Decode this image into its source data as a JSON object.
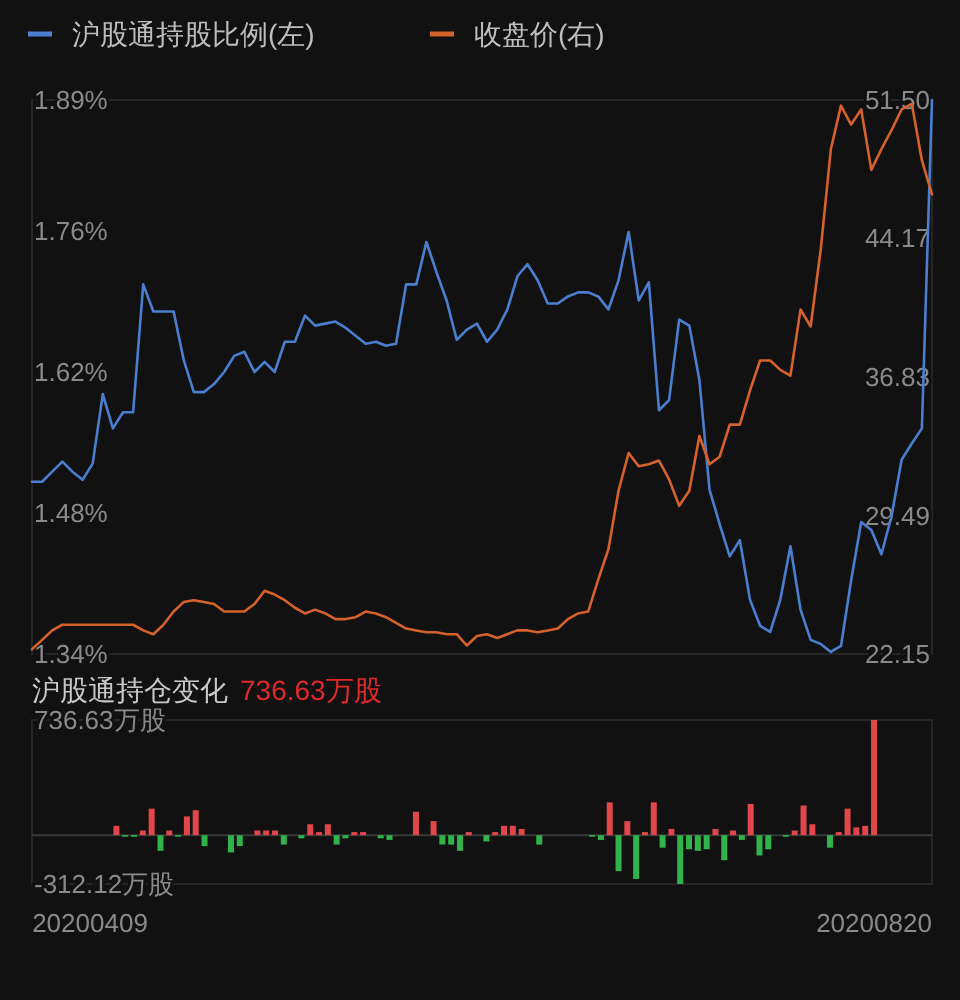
{
  "chart_data": [
    {
      "type": "line",
      "legend": "top left",
      "categories": [
        null,
        null,
        null,
        null,
        null,
        null,
        null,
        null,
        null,
        null,
        null,
        null,
        null,
        null,
        null,
        null,
        null,
        null,
        null,
        null,
        null,
        null,
        null,
        null,
        null,
        null,
        null,
        null,
        null,
        null,
        null,
        null,
        null,
        null,
        null,
        null,
        null,
        null,
        null,
        null,
        null,
        null,
        null,
        null,
        null,
        null,
        null,
        null,
        null,
        null,
        null,
        null,
        null,
        null,
        null,
        null,
        null,
        null,
        null,
        null,
        null,
        null,
        null,
        null,
        null,
        null,
        null,
        null,
        null,
        null,
        null,
        null,
        null,
        null,
        null,
        null,
        null,
        null,
        null,
        null,
        null,
        null,
        null,
        null,
        null,
        null,
        null,
        null,
        null,
        null
      ],
      "series": [
        {
          "name": "沪股通持股比例(左)",
          "color": "#4a7fd0",
          "type": "line",
          "axis": "y",
          "values": [
            1.511,
            1.511,
            1.521,
            1.531,
            1.521,
            1.513,
            1.529,
            1.598,
            1.564,
            1.58,
            1.58,
            1.707,
            1.68,
            1.68,
            1.68,
            1.632,
            1.6,
            1.6,
            1.608,
            1.62,
            1.636,
            1.64,
            1.62,
            1.63,
            1.62,
            1.65,
            1.65,
            1.676,
            1.666,
            1.668,
            1.67,
            1.664,
            1.656,
            1.648,
            1.65,
            1.646,
            1.648,
            1.707,
            1.707,
            1.749,
            1.719,
            1.691,
            1.652,
            1.662,
            1.668,
            1.65,
            1.662,
            1.682,
            1.715,
            1.727,
            1.711,
            1.688,
            1.688,
            1.695,
            1.699,
            1.699,
            1.695,
            1.682,
            1.711,
            1.759,
            1.691,
            1.709,
            1.582,
            1.592,
            1.672,
            1.666,
            1.612,
            1.503,
            1.469,
            1.437,
            1.453,
            1.394,
            1.368,
            1.362,
            1.394,
            1.447,
            1.384,
            1.354,
            1.35,
            1.342,
            1.348,
            1.413,
            1.471,
            1.463,
            1.439,
            1.477,
            1.533,
            1.549,
            1.564,
            1.89
          ]
        },
        {
          "name": "收盘价(右)",
          "color": "#d4622a",
          "type": "line",
          "axis": "y2",
          "values": [
            22.4,
            22.9,
            23.4,
            23.7,
            23.7,
            23.7,
            23.7,
            23.7,
            23.7,
            23.7,
            23.7,
            23.4,
            23.2,
            23.7,
            24.4,
            24.9,
            25.0,
            24.9,
            24.8,
            24.4,
            24.4,
            24.4,
            24.8,
            25.5,
            25.3,
            25.0,
            24.6,
            24.3,
            24.5,
            24.3,
            24.0,
            24.0,
            24.1,
            24.4,
            24.3,
            24.1,
            23.8,
            23.5,
            23.4,
            23.3,
            23.3,
            23.2,
            23.2,
            22.6,
            23.1,
            23.2,
            23.0,
            23.2,
            23.4,
            23.4,
            23.3,
            23.4,
            23.5,
            24.0,
            24.3,
            24.4,
            26.1,
            27.7,
            30.8,
            32.8,
            32.1,
            32.2,
            32.4,
            31.4,
            30.0,
            30.8,
            33.7,
            32.2,
            32.6,
            34.3,
            34.3,
            36.1,
            37.7,
            37.7,
            37.2,
            36.9,
            40.4,
            39.5,
            43.6,
            48.9,
            51.2,
            50.2,
            51.0,
            47.8,
            48.9,
            49.9,
            51.0,
            51.3,
            48.3,
            46.5
          ]
        }
      ],
      "ylim": [
        1.34,
        1.89
      ],
      "yticks": [
        {
          "value": 1.34,
          "label": "1.34%"
        },
        {
          "value": 1.48,
          "label": "1.48%"
        },
        {
          "value": 1.62,
          "label": "1.62%"
        },
        {
          "value": 1.76,
          "label": "1.76%"
        },
        {
          "value": 1.89,
          "label": "1.89%"
        }
      ],
      "y2lim": [
        22.15,
        51.5
      ],
      "y2ticks": [
        22.15,
        29.49,
        36.83,
        44.17,
        {
          "value": 51.5,
          "label": "51.50"
        }
      ]
    },
    {
      "type": "bar",
      "title": "沪股通持仓变化",
      "subtitle": "736.63万股",
      "categories": [
        "20200409",
        null,
        null,
        null,
        null,
        null,
        null,
        null,
        null,
        null,
        null,
        null,
        null,
        null,
        null,
        null,
        null,
        null,
        null,
        null,
        null,
        null,
        null,
        null,
        null,
        null,
        null,
        null,
        null,
        null,
        null,
        null,
        null,
        null,
        null,
        null,
        null,
        null,
        null,
        null,
        null,
        null,
        null,
        null,
        null,
        null,
        null,
        null,
        null,
        null,
        null,
        null,
        null,
        null,
        null,
        null,
        null,
        null,
        null,
        null,
        null,
        null,
        null,
        null,
        null,
        null,
        null,
        null,
        null,
        null,
        null,
        null,
        null,
        null,
        null,
        null,
        null,
        null,
        null,
        null,
        null,
        null,
        null,
        null,
        null,
        null,
        null,
        null,
        null,
        "20200820"
      ],
      "values": [
        null,
        null,
        null,
        60,
        -10,
        -10,
        30,
        170,
        -100,
        30,
        -10,
        120,
        160,
        -70,
        null,
        null,
        -110,
        -70,
        null,
        30,
        30,
        30,
        -60,
        null,
        -20,
        70,
        20,
        70,
        -60,
        -20,
        20,
        20,
        null,
        -20,
        -30,
        null,
        null,
        150,
        null,
        90,
        -60,
        -60,
        -100,
        20,
        null,
        -40,
        20,
        60,
        60,
        40,
        null,
        -60,
        null,
        null,
        null,
        null,
        null,
        -10,
        -30,
        210,
        -230,
        90,
        -280,
        20,
        210,
        -80,
        40,
        -312.12,
        -90,
        -100,
        -90,
        40,
        -160,
        30,
        -30,
        200,
        -130,
        -90,
        null,
        -10,
        30,
        190,
        70,
        null,
        -80,
        20,
        170,
        50,
        60,
        736.63
      ],
      "colors": [
        null,
        null,
        null,
        "#e0464a",
        "#2fb34a",
        "#2fb34a",
        "#e0464a",
        "#e0464a",
        "#2fb34a",
        "#e0464a",
        "#2fb34a",
        "#e0464a",
        "#e0464a",
        "#2fb34a",
        null,
        null,
        "#2fb34a",
        "#2fb34a",
        null,
        "#e0464a",
        "#e0464a",
        "#e0464a",
        "#2fb34a",
        null,
        "#2fb34a",
        "#e0464a",
        "#e0464a",
        "#e0464a",
        "#2fb34a",
        "#2fb34a",
        "#e0464a",
        "#e0464a",
        null,
        "#2fb34a",
        "#2fb34a",
        null,
        null,
        "#e0464a",
        null,
        "#e0464a",
        "#2fb34a",
        "#2fb34a",
        "#2fb34a",
        "#e0464a",
        null,
        "#2fb34a",
        "#e0464a",
        "#e0464a",
        "#e0464a",
        "#e0464a",
        null,
        "#2fb34a",
        null,
        null,
        null,
        null,
        null,
        "#2fb34a",
        "#2fb34a",
        "#e0464a",
        "#2fb34a",
        "#e0464a",
        "#2fb34a",
        "#e0464a",
        "#e0464a",
        "#2fb34a",
        "#e0464a",
        "#2fb34a",
        "#2fb34a",
        "#2fb34a",
        "#2fb34a",
        "#e0464a",
        "#2fb34a",
        "#e0464a",
        "#2fb34a",
        "#e0464a",
        "#2fb34a",
        "#2fb34a",
        null,
        "#2fb34a",
        "#e0464a",
        "#e0464a",
        "#e0464a",
        null,
        "#2fb34a",
        "#e0464a",
        "#e0464a",
        "#e0464a",
        "#e0464a",
        "#e0464a"
      ],
      "ylim": [
        -312.12,
        736.63
      ],
      "yticks": [
        {
          "value": 736.63,
          "label": "736.63万股"
        },
        {
          "value": -312.12,
          "label": "-312.12万股"
        }
      ]
    }
  ]
}
